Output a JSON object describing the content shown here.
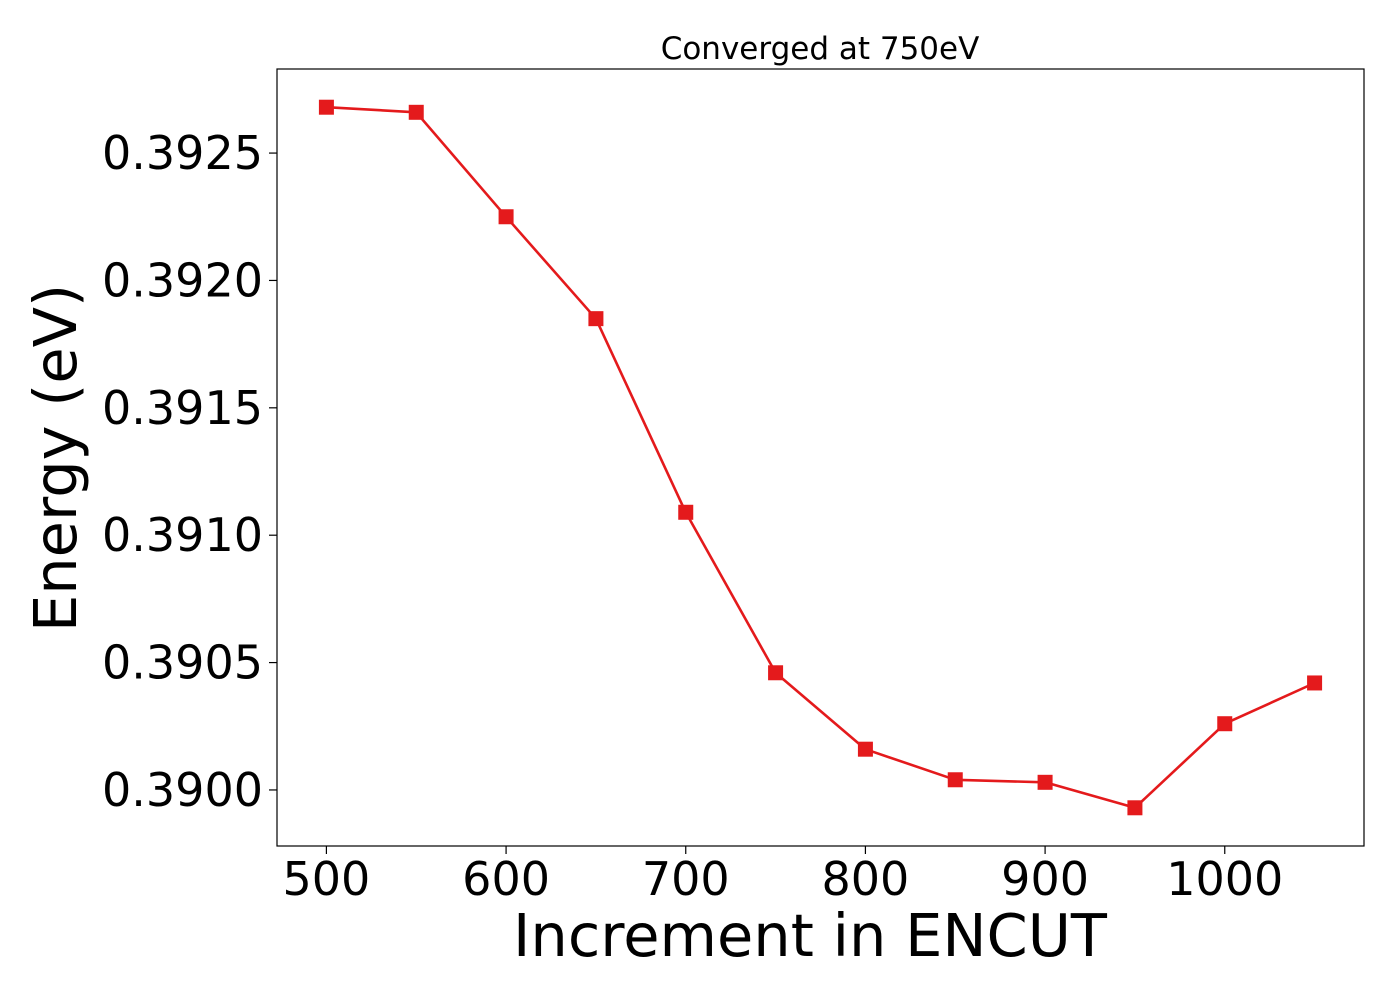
{
  "chart_data": {
    "type": "line",
    "title": "Converged at 750eV",
    "xlabel": "Increment in ENCUT",
    "ylabel": "Energy (eV)",
    "xlim": [
      472.5,
      1077.5
    ],
    "ylim": [
      0.38978,
      0.39283
    ],
    "xticks": [
      500,
      600,
      700,
      800,
      900,
      1000
    ],
    "xtick_labels": [
      "500",
      "600",
      "700",
      "800",
      "900",
      "1000"
    ],
    "yticks": [
      0.39,
      0.3905,
      0.391,
      0.3915,
      0.392,
      0.3925
    ],
    "ytick_labels": [
      "0.3900",
      "0.3905",
      "0.3910",
      "0.3915",
      "0.3920",
      "0.3925"
    ],
    "grid": false,
    "series": [
      {
        "color": "#e41a1c",
        "marker": "square",
        "x": [
          500,
          550,
          600,
          650,
          700,
          750,
          800,
          850,
          900,
          950,
          1000,
          1050
        ],
        "y": [
          0.39268,
          0.39266,
          0.39225,
          0.39185,
          0.39109,
          0.39046,
          0.39016,
          0.39004,
          0.39003,
          0.38993,
          0.39026,
          0.39042
        ]
      }
    ]
  }
}
